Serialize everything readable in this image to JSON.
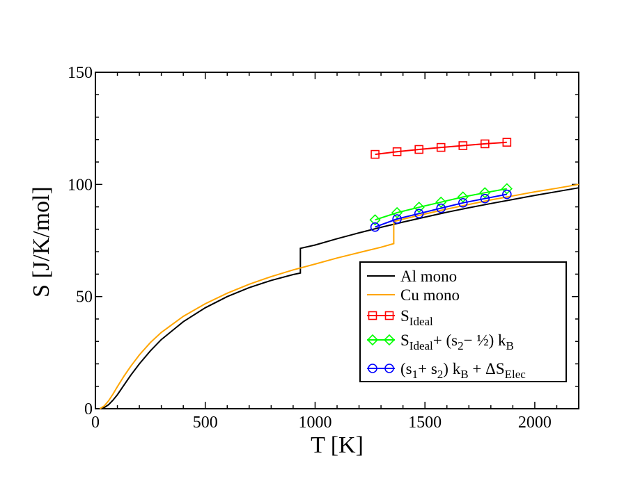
{
  "chart_data": {
    "type": "line",
    "xlabel": "T  [K]",
    "ylabel": "S  [J/K/mol]",
    "xlim": [
      0,
      2200
    ],
    "ylim": [
      0,
      150
    ],
    "x_ticks": [
      0,
      500,
      1000,
      1500,
      2000
    ],
    "y_ticks": [
      0,
      50,
      100,
      150
    ],
    "x_tick_labels": [
      "0",
      "500",
      "1000",
      "1500",
      "2000"
    ],
    "y_tick_labels": [
      "0",
      "50",
      "100",
      "150"
    ],
    "grid": false,
    "legend_position": "bottom-right",
    "series": [
      {
        "name": "Al mono",
        "color": "#000000",
        "marker": "none",
        "x": [
          20,
          40,
          60,
          80,
          100,
          130,
          160,
          200,
          250,
          300,
          400,
          500,
          600,
          700,
          800,
          900,
          933,
          933,
          1000,
          1100,
          1200,
          1300,
          1400,
          1500,
          1600,
          1700,
          1800,
          1900,
          2000,
          2100,
          2200
        ],
        "y": [
          0,
          0.5,
          1.8,
          3.8,
          6.2,
          10.5,
          14.8,
          20.0,
          25.8,
          30.8,
          38.8,
          45.0,
          50.0,
          54.0,
          57.2,
          59.8,
          60.5,
          71.5,
          73.0,
          75.8,
          78.4,
          80.9,
          83.2,
          85.4,
          87.6,
          89.6,
          91.5,
          93.3,
          95.1,
          96.8,
          98.5
        ]
      },
      {
        "name": "Cu mono",
        "color": "#ffa500",
        "marker": "none",
        "x": [
          20,
          40,
          60,
          80,
          100,
          130,
          160,
          200,
          250,
          300,
          400,
          500,
          600,
          700,
          800,
          900,
          1000,
          1100,
          1200,
          1300,
          1358,
          1358,
          1400,
          1500,
          1600,
          1700,
          1800,
          1900,
          2000,
          2100,
          2200
        ],
        "y": [
          0,
          1.2,
          3.5,
          6.5,
          9.8,
          14.5,
          18.8,
          24.0,
          29.5,
          34.0,
          41.2,
          46.8,
          51.5,
          55.5,
          58.9,
          61.9,
          64.5,
          67.2,
          69.6,
          72.0,
          73.6,
          83.5,
          84.5,
          86.8,
          89.0,
          91.1,
          93.1,
          94.9,
          96.7,
          98.3,
          100.0
        ]
      },
      {
        "name": "S_Ideal",
        "legend_main": "S",
        "legend_sub": "Ideal",
        "color": "#ff0000",
        "marker": "square",
        "x": [
          1273,
          1373,
          1473,
          1573,
          1673,
          1773,
          1873
        ],
        "y": [
          113.4,
          114.6,
          115.6,
          116.5,
          117.3,
          118.1,
          118.8
        ]
      },
      {
        "name": "S_Ideal+ (s_2− ½) k_B",
        "legend_parts": [
          "S",
          "Ideal",
          "+ (s",
          "2",
          "− ½) k",
          "B"
        ],
        "color": "#00ff00",
        "marker": "diamond",
        "x": [
          1273,
          1373,
          1473,
          1573,
          1673,
          1773,
          1873
        ],
        "y": [
          84.2,
          87.4,
          89.8,
          92.1,
          94.4,
          96.3,
          98.1
        ]
      },
      {
        "name": "(s_1+ s_2) k_B + ΔS_Elec",
        "legend_parts": [
          "(s",
          "1",
          "+ s",
          "2",
          ") k",
          "B",
          " + ΔS",
          "Elec"
        ],
        "color": "#0000ff",
        "marker": "circle",
        "x": [
          1273,
          1373,
          1473,
          1573,
          1673,
          1773,
          1873
        ],
        "y": [
          81.0,
          84.6,
          87.0,
          89.4,
          91.8,
          93.7,
          95.6
        ]
      }
    ]
  }
}
